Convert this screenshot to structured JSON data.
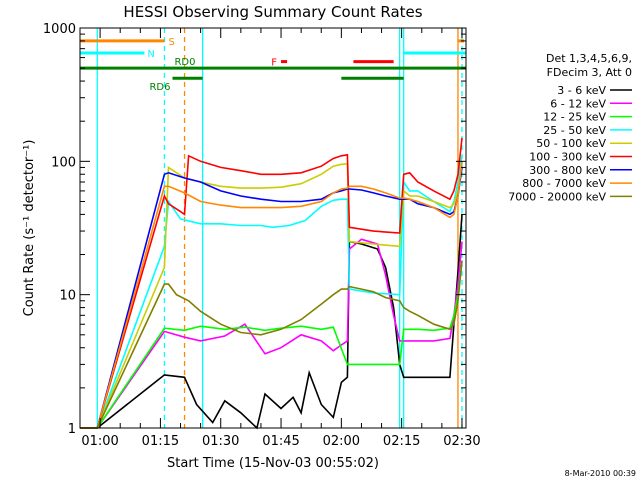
{
  "chart_data": {
    "type": "line",
    "title": "HESSI Observing Summary Count Rates",
    "xlabel": "Start Time (15-Nov-03 00:55:02)",
    "ylabel": "Count Rate (s⁻¹ detector⁻¹)",
    "y_scale": "log",
    "ylim": [
      1,
      1000
    ],
    "xlim_minutes": [
      0,
      96
    ],
    "x_ticks": [
      {
        "t": 5,
        "label": "01:00"
      },
      {
        "t": 20,
        "label": "01:15"
      },
      {
        "t": 35,
        "label": "01:30"
      },
      {
        "t": 50,
        "label": "01:45"
      },
      {
        "t": 65,
        "label": "02:00"
      },
      {
        "t": 80,
        "label": "02:15"
      },
      {
        "t": 95,
        "label": "02:30"
      }
    ],
    "y_ticks": [
      {
        "v": 1,
        "label": "1"
      },
      {
        "v": 10,
        "label": "10"
      },
      {
        "v": 100,
        "label": "100"
      },
      {
        "v": 1000,
        "label": "1000"
      }
    ],
    "legend_header": [
      "Det 1,3,4,5,6,9,",
      "FDecim 3, Att 0"
    ],
    "legend_position": "right",
    "series": [
      {
        "name": "3 - 6 keV",
        "color": "#000000",
        "x": [
          0,
          2,
          4.3,
          21,
          26,
          29,
          33,
          36,
          40,
          44,
          46,
          50,
          53,
          55,
          57,
          60,
          63,
          65,
          66.5,
          67,
          70,
          74,
          76,
          78,
          79.5,
          80.5,
          84,
          88,
          92,
          93,
          94,
          95
        ],
        "y": [
          1,
          1,
          1,
          2.5,
          2.4,
          1.5,
          1.1,
          1.6,
          1.3,
          1.0,
          1.8,
          1.4,
          1.7,
          1.3,
          2.6,
          1.5,
          1.2,
          2.2,
          2.4,
          25,
          24,
          22,
          16,
          8,
          3,
          2.4,
          2.4,
          2.4,
          2.4,
          6,
          15,
          40
        ]
      },
      {
        "name": "6 - 12 keV",
        "color": "#ff00ff",
        "x": [
          0,
          2,
          4.3,
          21,
          26,
          30,
          36,
          41,
          46,
          50,
          55,
          60,
          63,
          65,
          66.5,
          67,
          70,
          74,
          76,
          78,
          79.5,
          80.5,
          84,
          88,
          92,
          93,
          94,
          95
        ],
        "y": [
          1,
          1,
          1,
          5.3,
          4.8,
          4.5,
          4.9,
          6,
          3.6,
          4,
          5,
          4.5,
          3.8,
          4.2,
          4.5,
          22,
          26,
          24,
          14,
          7,
          4.5,
          4.5,
          4.5,
          4.5,
          4.7,
          7,
          12,
          25
        ]
      },
      {
        "name": "12 - 25 keV",
        "color": "#00ff00",
        "x": [
          0,
          2,
          4.3,
          21,
          26,
          30,
          36,
          41,
          46,
          50,
          55,
          60,
          63,
          66.5,
          67,
          72,
          78,
          79.5,
          80.5,
          84,
          88,
          92,
          93,
          94,
          95
        ],
        "y": [
          1,
          1,
          1,
          5.6,
          5.4,
          5.8,
          5.5,
          5.7,
          5.4,
          5.6,
          5.8,
          5.5,
          5.7,
          3,
          3,
          3,
          3,
          3,
          5.5,
          5.5,
          5.4,
          5.6,
          7,
          10,
          18
        ]
      },
      {
        "name": "25 - 50 keV",
        "color": "#00ffff",
        "x": [
          0,
          2,
          4.3,
          21,
          22,
          25,
          30,
          35,
          40,
          45,
          48,
          52,
          56,
          60,
          63,
          65,
          66.5,
          67,
          73,
          79.5,
          80.5,
          82,
          84,
          88,
          92,
          93,
          94,
          95
        ],
        "y": [
          1,
          1,
          1,
          23,
          50,
          37,
          34,
          34,
          33,
          33,
          32,
          33,
          36,
          46,
          51,
          52,
          52,
          11,
          10.3,
          10,
          70,
          60,
          60,
          50,
          42,
          50,
          70,
          110
        ]
      },
      {
        "name": "50 - 100 keV",
        "color": "#cccc00",
        "x": [
          0,
          2,
          4.3,
          21,
          22,
          26,
          30,
          35,
          40,
          45,
          50,
          55,
          60,
          63,
          65,
          66.5,
          67,
          73,
          79.5,
          80.5,
          82,
          84,
          88,
          92,
          93,
          94,
          95
        ],
        "y": [
          1,
          1,
          1,
          16,
          90,
          75,
          70,
          65,
          63,
          63,
          64,
          68,
          80,
          92,
          95,
          96,
          25,
          24,
          23,
          60,
          55,
          55,
          50,
          45,
          48,
          60,
          100
        ]
      },
      {
        "name": "100 - 300 keV",
        "color": "#ff0000",
        "x": [
          0,
          2,
          4.3,
          21,
          22,
          25,
          26,
          27,
          30,
          35,
          40,
          45,
          50,
          55,
          60,
          63,
          65,
          66.5,
          67,
          73,
          79.5,
          80.5,
          82,
          84,
          88,
          92,
          93,
          94,
          95
        ],
        "y": [
          1,
          1,
          1,
          55,
          48,
          42,
          40,
          110,
          100,
          90,
          85,
          80,
          80,
          82,
          92,
          105,
          110,
          112,
          32,
          30,
          29,
          80,
          82,
          70,
          60,
          52,
          60,
          80,
          150
        ]
      },
      {
        "name": "300 - 800 keV",
        "color": "#0000ff",
        "x": [
          0,
          2,
          4.3,
          21,
          22,
          26,
          30,
          35,
          40,
          45,
          50,
          55,
          60,
          63,
          65,
          66.5,
          67,
          70,
          73,
          76,
          79.5,
          80.5,
          82,
          84,
          88,
          92,
          93,
          94,
          95
        ],
        "y": [
          1,
          1,
          1,
          80,
          82,
          75,
          70,
          60,
          55,
          52,
          50,
          50,
          52,
          58,
          60,
          62,
          62,
          61,
          58,
          55,
          52,
          52,
          52,
          48,
          45,
          40,
          42,
          55,
          90
        ]
      },
      {
        "name": "800 - 7000 keV",
        "color": "#ff8800",
        "x": [
          0,
          2,
          4.3,
          21,
          22,
          26,
          30,
          35,
          40,
          45,
          50,
          55,
          60,
          63,
          65,
          66.5,
          67,
          70,
          73,
          76,
          79.5,
          80.5,
          82,
          84,
          88,
          92,
          93,
          94,
          95
        ],
        "y": [
          1,
          1,
          1,
          65,
          65,
          58,
          50,
          47,
          45,
          45,
          45,
          46,
          50,
          58,
          62,
          63,
          65,
          65,
          62,
          58,
          53,
          53,
          52,
          50,
          45,
          38,
          40,
          55,
          100
        ]
      },
      {
        "name": "7000 - 20000 keV",
        "color": "#808000",
        "x": [
          0,
          2,
          4.3,
          21,
          22,
          24,
          27,
          30,
          35,
          40,
          45,
          50,
          55,
          60,
          63,
          65,
          66.5,
          67,
          70,
          73,
          76,
          79.5,
          80.5,
          82,
          84,
          88,
          92,
          93,
          94,
          95
        ],
        "y": [
          1,
          1,
          1,
          12,
          12,
          10,
          9,
          7.5,
          6,
          5.2,
          5,
          5.5,
          6.5,
          8.5,
          10,
          11,
          11,
          11.5,
          11,
          10.5,
          9.5,
          9,
          8,
          7.5,
          7,
          6,
          5.5,
          6,
          9,
          18
        ]
      }
    ],
    "flags": [
      {
        "label": "S",
        "color": "#ff8800",
        "level": 800,
        "intervals": [
          [
            0,
            21
          ],
          [
            94,
            95.5
          ]
        ]
      },
      {
        "label": "N",
        "color": "#00ffff",
        "level": 650,
        "intervals": [
          [
            0,
            16
          ],
          [
            80.5,
            96
          ]
        ]
      },
      {
        "label": "F",
        "color": "#ff0000",
        "level": 560,
        "intervals": [
          [
            50,
            51.5
          ],
          [
            68,
            78
          ]
        ]
      },
      {
        "label": "RD0",
        "color": "#008000",
        "level": 500,
        "intervals": [
          [
            0,
            96
          ]
        ]
      },
      {
        "label": "RD6",
        "color": "#008000",
        "level": 420,
        "intervals": [
          [
            23,
            30.5
          ],
          [
            65,
            80.5
          ]
        ]
      }
    ],
    "vertical_lines": [
      {
        "t": 4.3,
        "color": "#00ffff",
        "style": "solid"
      },
      {
        "t": 21,
        "color": "#00ffff",
        "style": "dashed"
      },
      {
        "t": 26,
        "color": "#ff8800",
        "style": "dashed"
      },
      {
        "t": 30.5,
        "color": "#00ffff",
        "style": "solid"
      },
      {
        "t": 79.5,
        "color": "#00ffff",
        "style": "solid"
      },
      {
        "t": 80.5,
        "color": "#00ffff",
        "style": "solid"
      },
      {
        "t": 94,
        "color": "#ff8800",
        "style": "solid"
      },
      {
        "t": 95,
        "color": "#00ffff",
        "style": "dashed"
      }
    ],
    "grid": false
  },
  "footer_stamp": "8-Mar-2010 00:39"
}
